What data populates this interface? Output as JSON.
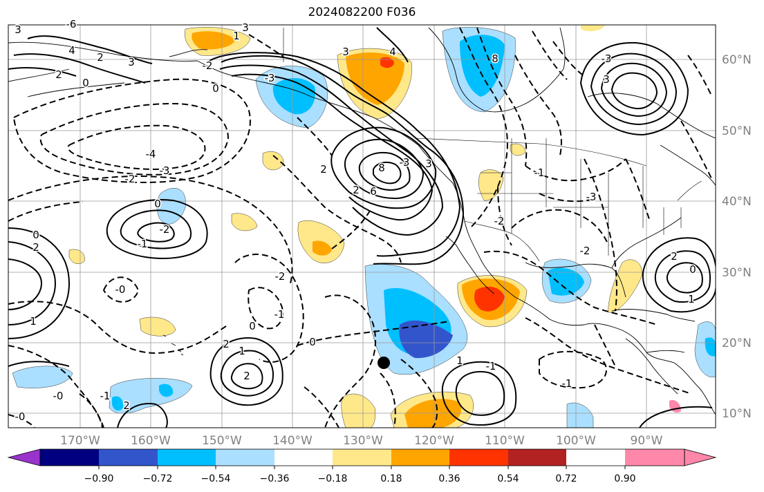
{
  "title": "2024082200 F036",
  "map": {
    "lon_range": [
      -180,
      -80
    ],
    "lat_range": [
      7,
      64
    ],
    "lon_labels": [
      "170°W",
      "160°W",
      "150°W",
      "140°W",
      "130°W",
      "120°W",
      "110°W",
      "100°W",
      "90°W"
    ],
    "lat_labels": [
      "60°N",
      "50°N",
      "40°N",
      "30°N",
      "20°N",
      "10°N"
    ],
    "contour_labels": [
      "3",
      "-6",
      "4",
      "2",
      "3",
      "0",
      "2",
      "-2",
      "1",
      "3",
      "-3",
      "0",
      "2",
      "6",
      "8",
      "8",
      "3",
      "4",
      "3",
      "2",
      "-3",
      "-4",
      "-3",
      "-2",
      "0",
      "-2",
      "-1",
      "0",
      "2",
      "1",
      "-3",
      "-0",
      "-2",
      "-1",
      "0",
      "2",
      "1",
      "2",
      "0",
      "1",
      "-1",
      "-0",
      "-1",
      "2",
      "-0",
      "-2",
      "-1",
      "-3",
      "-2",
      "-1",
      "0",
      "1",
      "2",
      "3"
    ],
    "marker": {
      "type": "storm-center-dot",
      "lon": -126,
      "lat": 17
    }
  },
  "colorbar": {
    "ticks": [
      "−0.90",
      "−0.72",
      "−0.54",
      "−0.36",
      "−0.18",
      "0.18",
      "0.36",
      "0.54",
      "0.72",
      "0.90"
    ],
    "colors": [
      "#9933cc",
      "#000080",
      "#3355cc",
      "#00bfff",
      "#aadfff",
      "#ffffff",
      "#ffe88a",
      "#ffa500",
      "#ff3300",
      "#b22222",
      "#ff88aa"
    ]
  }
}
